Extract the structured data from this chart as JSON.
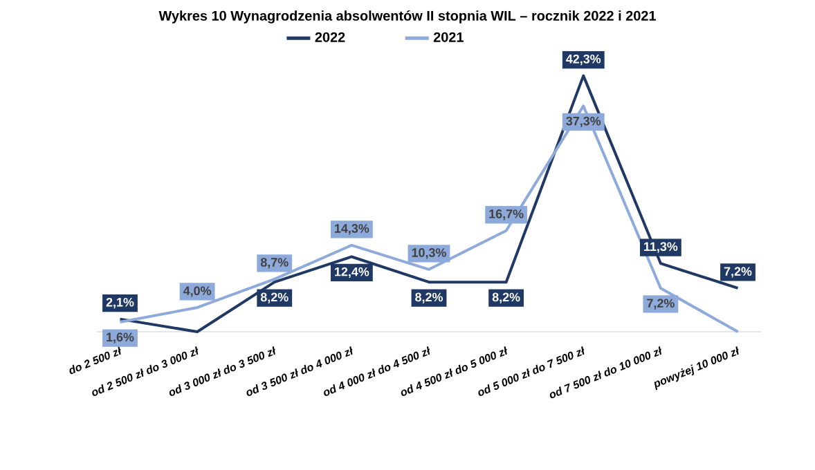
{
  "chart_data": {
    "type": "line",
    "title": "Wykres 10  Wynagrodzenia absolwentów II stopnia WIL – rocznik 2022 i 2021",
    "categories": [
      "do 2 500 zł",
      "od 2 500 zł do 3 000 zł",
      "od 3 000 zł do 3 500 zł",
      "od 3 500 zł do 4 000 zł",
      "od 4 000 zł do 4 500 zł",
      "od 4 500 zł do 5 000 zł",
      "od 5 000 zł do 7 500 zł",
      "od 7 500 zł do 10 000 zł",
      "powyżej 10 000 zł"
    ],
    "series": [
      {
        "name": "2022",
        "color": "#1f3864",
        "values": [
          2.1,
          0,
          8.2,
          12.4,
          8.2,
          8.2,
          42.3,
          11.3,
          7.2
        ],
        "value_labels": [
          "2,1%",
          null,
          "8,2%",
          "12,4%",
          "8,2%",
          "8,2%",
          "42,3%",
          "11,3%",
          "7,2%"
        ]
      },
      {
        "name": "2021",
        "color": "#8eaadb",
        "values": [
          1.6,
          4.0,
          8.7,
          14.3,
          10.3,
          16.7,
          37.3,
          7.2,
          0
        ],
        "value_labels": [
          "1,6%",
          "4,0%",
          "8,7%",
          "14,3%",
          "10,3%",
          "16,7%",
          "37,3%",
          "7,2%",
          null
        ]
      }
    ],
    "legend": "top",
    "marker": "none",
    "line_style": "solid"
  }
}
